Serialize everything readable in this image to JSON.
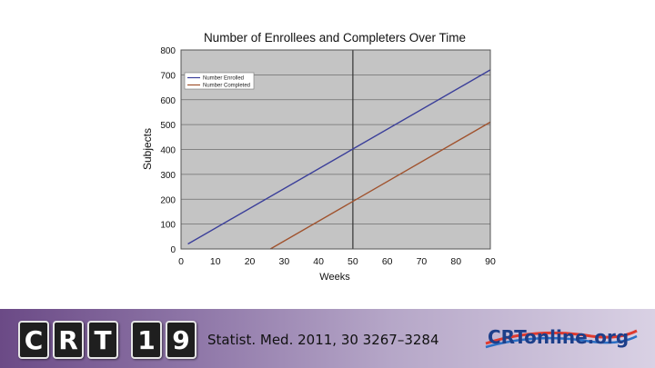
{
  "chart_data": {
    "type": "line",
    "title": "Number of Enrollees and Completers Over Time",
    "xlabel": "Weeks",
    "ylabel": "Subjects",
    "xlim": [
      0,
      90
    ],
    "ylim": [
      0,
      800
    ],
    "xticks": [
      0,
      10,
      20,
      30,
      40,
      50,
      60,
      70,
      80,
      90
    ],
    "yticks": [
      0,
      100,
      200,
      300,
      400,
      500,
      600,
      700,
      800
    ],
    "grid": true,
    "legend": "top-left",
    "reference_line_x": 50,
    "series": [
      {
        "name": "Number Enrolled",
        "color": "#3b3f9a",
        "x": [
          2,
          90
        ],
        "y": [
          20,
          720
        ]
      },
      {
        "name": "Number Completed",
        "color": "#a0522d",
        "x": [
          26,
          90
        ],
        "y": [
          0,
          510
        ]
      }
    ]
  },
  "footer": {
    "logo_letters": [
      "C",
      "R",
      "T",
      "1",
      "9"
    ],
    "citation": "Statist. Med. 2011, 30 3267–3284",
    "site_logo_text": "CRTonline.org"
  }
}
